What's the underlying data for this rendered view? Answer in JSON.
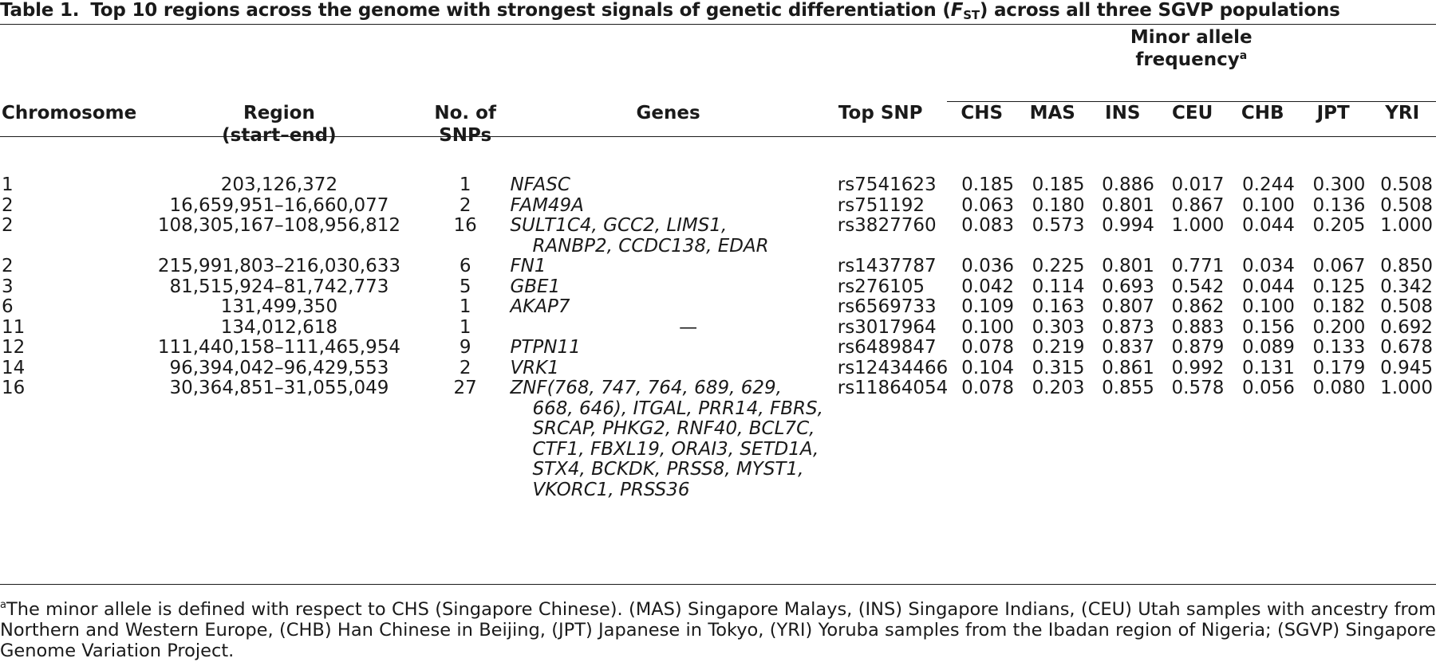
{
  "caption": {
    "label": "Table 1.",
    "title_before": "Top 10 regions across the genome with strongest signals of genetic differentiation (",
    "fst_symbol": "F",
    "fst_sub": "ST",
    "title_after": ") across all three SGVP populations"
  },
  "header": {
    "chromosome": "Chromosome",
    "region_line1": "Region",
    "region_line2": "(start–end)",
    "snps_line1": "No. of",
    "snps_line2": "SNPs",
    "genes": "Genes",
    "top_snp": "Top SNP",
    "maf_group_line1": "Minor allele",
    "maf_group_line2": "frequency",
    "maf_group_sup": "a",
    "populations": [
      "CHS",
      "MAS",
      "INS",
      "CEU",
      "CHB",
      "JPT",
      "YRI"
    ]
  },
  "rows": [
    {
      "chromosome": "1",
      "region": "203,126,372",
      "snps": "1",
      "genes": [
        "NFASC"
      ],
      "top_snp": "rs7541623",
      "maf": [
        "0.185",
        "0.185",
        "0.886",
        "0.017",
        "0.244",
        "0.300",
        "0.508"
      ]
    },
    {
      "chromosome": "2",
      "region": "16,659,951–16,660,077",
      "snps": "2",
      "genes": [
        "FAM49A"
      ],
      "top_snp": "rs751192",
      "maf": [
        "0.063",
        "0.180",
        "0.801",
        "0.867",
        "0.100",
        "0.136",
        "0.508"
      ]
    },
    {
      "chromosome": "2",
      "region": "108,305,167–108,956,812",
      "snps": "16",
      "genes": [
        "SULT1C4, GCC2, LIMS1,",
        "RANBP2, CCDC138, EDAR"
      ],
      "top_snp": "rs3827760",
      "maf": [
        "0.083",
        "0.573",
        "0.994",
        "1.000",
        "0.044",
        "0.205",
        "1.000"
      ]
    },
    {
      "chromosome": "2",
      "region": "215,991,803–216,030,633",
      "snps": "6",
      "genes": [
        "FN1"
      ],
      "top_snp": "rs1437787",
      "maf": [
        "0.036",
        "0.225",
        "0.801",
        "0.771",
        "0.034",
        "0.067",
        "0.850"
      ]
    },
    {
      "chromosome": "3",
      "region": "81,515,924–81,742,773",
      "snps": "5",
      "genes": [
        "GBE1"
      ],
      "top_snp": "rs276105",
      "maf": [
        "0.042",
        "0.114",
        "0.693",
        "0.542",
        "0.044",
        "0.125",
        "0.342"
      ]
    },
    {
      "chromosome": "6",
      "region": "131,499,350",
      "snps": "1",
      "genes": [
        "AKAP7"
      ],
      "top_snp": "rs6569733",
      "maf": [
        "0.109",
        "0.163",
        "0.807",
        "0.862",
        "0.100",
        "0.182",
        "0.508"
      ]
    },
    {
      "chromosome": "11",
      "region": "134,012,618",
      "snps": "1",
      "genes": [],
      "genes_placeholder": "—",
      "top_snp": "rs3017964",
      "maf": [
        "0.100",
        "0.303",
        "0.873",
        "0.883",
        "0.156",
        "0.200",
        "0.692"
      ]
    },
    {
      "chromosome": "12",
      "region": "111,440,158–111,465,954",
      "snps": "9",
      "genes": [
        "PTPN11"
      ],
      "top_snp": "rs6489847",
      "maf": [
        "0.078",
        "0.219",
        "0.837",
        "0.879",
        "0.089",
        "0.133",
        "0.678"
      ]
    },
    {
      "chromosome": "14",
      "region": "96,394,042–96,429,553",
      "snps": "2",
      "genes": [
        "VRK1"
      ],
      "top_snp": "rs12434466",
      "maf": [
        "0.104",
        "0.315",
        "0.861",
        "0.992",
        "0.131",
        "0.179",
        "0.945"
      ]
    },
    {
      "chromosome": "16",
      "region": "30,364,851–31,055,049",
      "snps": "27",
      "genes": [
        "ZNF(768, 747, 764, 689, 629,",
        "668, 646), ITGAL, PRR14, FBRS,",
        "SRCAP, PHKG2, RNF40, BCL7C,",
        "CTF1, FBXL19, ORAI3, SETD1A,",
        "STX4, BCKDK, PRSS8, MYST1,",
        "VKORC1, PRSS36"
      ],
      "top_snp": "rs11864054",
      "maf": [
        "0.078",
        "0.203",
        "0.855",
        "0.578",
        "0.056",
        "0.080",
        "1.000"
      ]
    }
  ],
  "footnote": {
    "marker": "a",
    "text": "The minor allele is defined with respect to CHS (Singapore Chinese). (MAS) Singapore Malays, (INS) Singapore Indians, (CEU) Utah samples with ancestry from Northern and Western Europe, (CHB) Han Chinese in Beijing, (JPT) Japanese in Tokyo, (YRI) Yoruba samples from the Ibadan region of Nigeria; (SGVP) Singapore Genome Variation Project."
  }
}
